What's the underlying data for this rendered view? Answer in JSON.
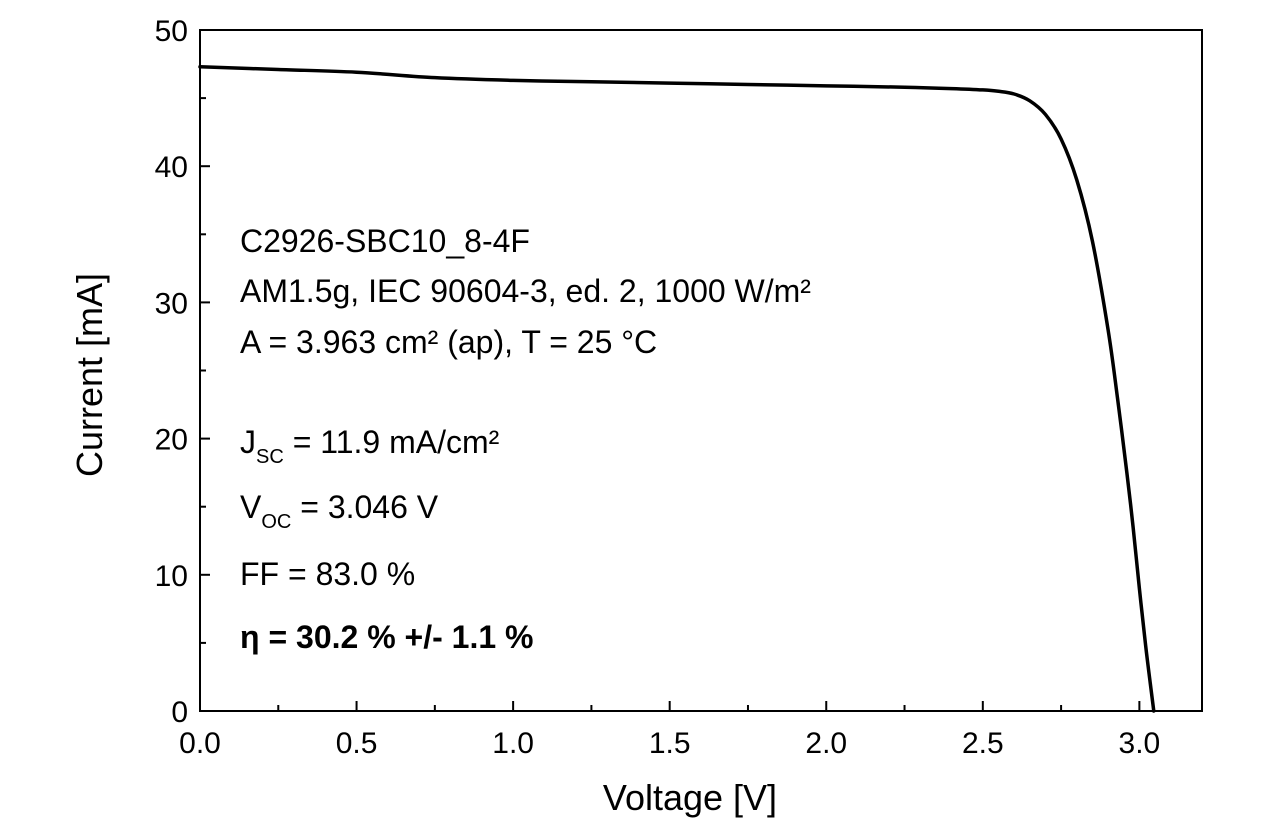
{
  "chart_data": {
    "type": "line",
    "xlabel": "Voltage [V]",
    "ylabel": "Current [mA]",
    "xlim": [
      0.0,
      3.2
    ],
    "ylim": [
      0,
      50
    ],
    "x_ticks": [
      "0.0",
      "0.5",
      "1.0",
      "1.5",
      "2.0",
      "2.5",
      "3.0"
    ],
    "y_ticks": [
      "0",
      "10",
      "20",
      "30",
      "40",
      "50"
    ],
    "grid": false,
    "line_color": "#000000",
    "series": [
      {
        "x": [
          0.0,
          0.25,
          0.5,
          0.75,
          1.0,
          1.25,
          1.5,
          1.75,
          2.0,
          2.25,
          2.4,
          2.5,
          2.55,
          2.6,
          2.65,
          2.7,
          2.75,
          2.8,
          2.85,
          2.9,
          2.93,
          2.96,
          2.98,
          3.0,
          3.02,
          3.035,
          3.046
        ],
        "y": [
          47.3,
          47.1,
          46.9,
          46.5,
          46.3,
          46.2,
          46.1,
          46.0,
          45.9,
          45.8,
          45.7,
          45.6,
          45.5,
          45.3,
          44.8,
          43.8,
          42.0,
          39.0,
          34.5,
          28.0,
          23.0,
          17.5,
          13.5,
          9.0,
          4.8,
          2.0,
          0.0
        ]
      }
    ],
    "annotations": {
      "line1": "C2926-SBC10_8-4F",
      "line2": "AM1.5g, IEC 90604-3, ed. 2, 1000 W/m²",
      "line3": "A = 3.963 cm² (ap), T = 25 °C",
      "jsc_main": "J",
      "jsc_sub": "SC",
      "jsc_value": " = 11.9 mA/cm²",
      "voc_main": "V",
      "voc_sub": "OC",
      "voc_value": " = 3.046 V",
      "ff": "FF = 83.0 %",
      "eta": "η = 30.2 % +/- 1.1 %"
    }
  }
}
